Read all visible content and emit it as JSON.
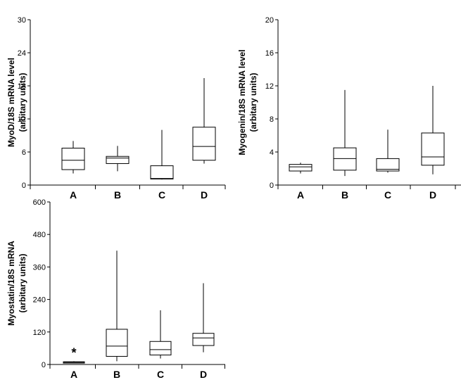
{
  "chart_data": [
    {
      "type": "boxplot",
      "ylabel_line1": "MyoD/18S mRNA level",
      "ylabel_line2": "(arbitary units)",
      "ylim": [
        0,
        30
      ],
      "yticks": [
        0,
        6,
        12,
        18,
        24,
        30
      ],
      "yticks_text": [
        "0",
        "6",
        "12",
        "18",
        "24",
        "30"
      ],
      "categories": [
        "A",
        "B",
        "C",
        "D"
      ],
      "boxes": [
        {
          "min": 2.1,
          "q1": 2.8,
          "median": 4.5,
          "q3": 6.7,
          "max": 8.0
        },
        {
          "min": 2.5,
          "q1": 3.9,
          "median": 4.9,
          "q3": 5.2,
          "max": 7.1
        },
        {
          "min": 1.0,
          "q1": 1.1,
          "median": 1.2,
          "q3": 3.5,
          "max": 10.0
        },
        {
          "min": 3.9,
          "q1": 4.5,
          "median": 7.0,
          "q3": 10.5,
          "max": 19.4
        }
      ],
      "annotations": []
    },
    {
      "type": "boxplot",
      "ylabel_line1": "Myogenin/18S mRNA level",
      "ylabel_line2": "(arbitary units)",
      "ylim": [
        0,
        20
      ],
      "yticks": [
        0,
        4,
        8,
        12,
        16,
        20
      ],
      "yticks_text": [
        "0",
        "4",
        "8",
        "12",
        "16",
        "20"
      ],
      "categories": [
        "A",
        "B",
        "C",
        "D"
      ],
      "boxes": [
        {
          "min": 1.4,
          "q1": 1.7,
          "median": 2.2,
          "q3": 2.5,
          "max": 2.7
        },
        {
          "min": 1.1,
          "q1": 1.8,
          "median": 3.2,
          "q3": 4.5,
          "max": 11.5
        },
        {
          "min": 1.5,
          "q1": 1.7,
          "median": 1.9,
          "q3": 3.2,
          "max": 6.7
        },
        {
          "min": 1.3,
          "q1": 2.4,
          "median": 3.4,
          "q3": 6.3,
          "max": 12.0
        }
      ],
      "annotations": []
    },
    {
      "type": "boxplot",
      "ylabel_line1": "Myostatin/18S mRNA",
      "ylabel_line2": "(arbitary units)",
      "ylim": [
        0,
        600
      ],
      "yticks": [
        0,
        120,
        240,
        360,
        480,
        600
      ],
      "yticks_text": [
        "0",
        "120",
        "240",
        "360",
        "480",
        "600"
      ],
      "categories": [
        "A",
        "B",
        "C",
        "D"
      ],
      "boxes": [
        {
          "min": 4,
          "q1": 5,
          "median": 8,
          "q3": 10,
          "max": 12
        },
        {
          "min": 12,
          "q1": 30,
          "median": 68,
          "q3": 130,
          "max": 420
        },
        {
          "min": 22,
          "q1": 35,
          "median": 55,
          "q3": 85,
          "max": 200
        },
        {
          "min": 45,
          "q1": 70,
          "median": 98,
          "q3": 115,
          "max": 300
        }
      ],
      "annotations": [
        {
          "category": "A",
          "text": "*"
        }
      ]
    }
  ]
}
